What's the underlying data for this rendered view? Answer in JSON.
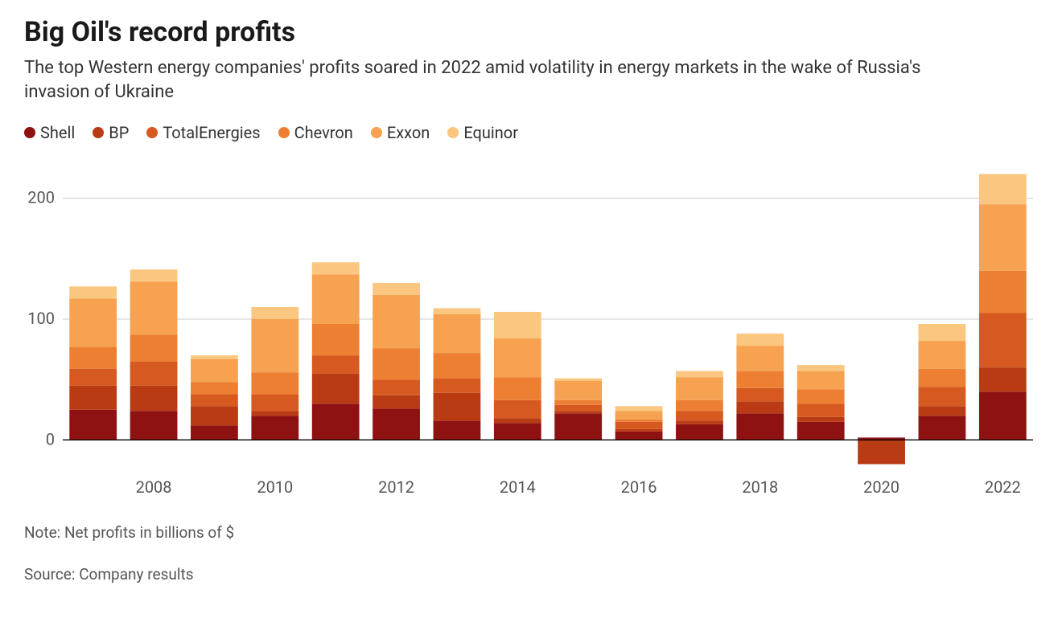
{
  "title": "Big Oil's record profits",
  "subtitle": "The top Western energy companies' profits soared in 2022 amid volatility in energy markets in the wake of Russia's invasion of Ukraine",
  "note_line": "Note: Net profits in billions of $",
  "source_line": "Source: Company results",
  "chart": {
    "type": "stacked-bar",
    "background_color": "#ffffff",
    "grid_color": "#cccccc",
    "axis_text_color": "#555555",
    "axis_font_size": 20,
    "baseline_color": "#000000",
    "bar_gap_ratio": 0.22,
    "y": {
      "min": -25,
      "max": 225,
      "ticks": [
        0,
        100,
        200
      ]
    },
    "years": [
      2007,
      2008,
      2009,
      2010,
      2011,
      2012,
      2013,
      2014,
      2015,
      2016,
      2017,
      2018,
      2019,
      2020,
      2021,
      2022
    ],
    "x_tick_years": [
      2008,
      2010,
      2012,
      2014,
      2016,
      2018,
      2020,
      2022
    ],
    "series": [
      {
        "name": "Shell",
        "color": "#8e1212"
      },
      {
        "name": "BP",
        "color": "#b83b14"
      },
      {
        "name": "TotalEnergies",
        "color": "#d65a1f"
      },
      {
        "name": "Chevron",
        "color": "#ec7f32"
      },
      {
        "name": "Exxon",
        "color": "#f6a251"
      },
      {
        "name": "Equinor",
        "color": "#fbc67f"
      }
    ],
    "values": {
      "2007": {
        "Shell": 25,
        "BP": 20,
        "TotalEnergies": 14,
        "Chevron": 18,
        "Exxon": 40,
        "Equinor": 10
      },
      "2008": {
        "Shell": 24,
        "BP": 21,
        "TotalEnergies": 20,
        "Chevron": 22,
        "Exxon": 44,
        "Equinor": 10
      },
      "2009": {
        "Shell": 12,
        "BP": 16,
        "TotalEnergies": 10,
        "Chevron": 10,
        "Exxon": 19,
        "Equinor": 3
      },
      "2010": {
        "Shell": 20,
        "BP": 4,
        "TotalEnergies": 14,
        "Chevron": 18,
        "Exxon": 44,
        "Equinor": 10
      },
      "2011": {
        "Shell": 30,
        "BP": 25,
        "TotalEnergies": 15,
        "Chevron": 26,
        "Exxon": 41,
        "Equinor": 10
      },
      "2012": {
        "Shell": 26,
        "BP": 11,
        "TotalEnergies": 13,
        "Chevron": 26,
        "Exxon": 44,
        "Equinor": 10
      },
      "2013": {
        "Shell": 16,
        "BP": 23,
        "TotalEnergies": 12,
        "Chevron": 21,
        "Exxon": 32,
        "Equinor": 5
      },
      "2014": {
        "Shell": 14,
        "BP": 4,
        "TotalEnergies": 15,
        "Chevron": 19,
        "Exxon": 32,
        "Equinor": 22
      },
      "2015": {
        "Shell": 22,
        "BP": 2,
        "TotalEnergies": 5,
        "Chevron": 4,
        "Exxon": 16,
        "Equinor": 2
      },
      "2016": {
        "Shell": 7,
        "BP": 2,
        "TotalEnergies": 6,
        "Chevron": 2,
        "Exxon": 7,
        "Equinor": 4
      },
      "2017": {
        "Shell": 13,
        "BP": 3,
        "TotalEnergies": 8,
        "Chevron": 9,
        "Exxon": 19,
        "Equinor": 5
      },
      "2018": {
        "Shell": 22,
        "BP": 10,
        "TotalEnergies": 11,
        "Chevron": 14,
        "Exxon": 21,
        "Equinor": 10
      },
      "2019": {
        "Shell": 15,
        "BP": 4,
        "TotalEnergies": 11,
        "Chevron": 12,
        "Exxon": 15,
        "Equinor": 5
      },
      "2020": {
        "Shell": 2,
        "BP": -20,
        "TotalEnergies": 0,
        "Chevron": 0,
        "Exxon": 0,
        "Equinor": 0
      },
      "2021": {
        "Shell": 20,
        "BP": 8,
        "TotalEnergies": 16,
        "Chevron": 15,
        "Exxon": 23,
        "Equinor": 14
      },
      "2022": {
        "Shell": 40,
        "BP": 20,
        "TotalEnergies": 45,
        "Chevron": 35,
        "Exxon": 55,
        "Equinor": 25
      }
    }
  }
}
